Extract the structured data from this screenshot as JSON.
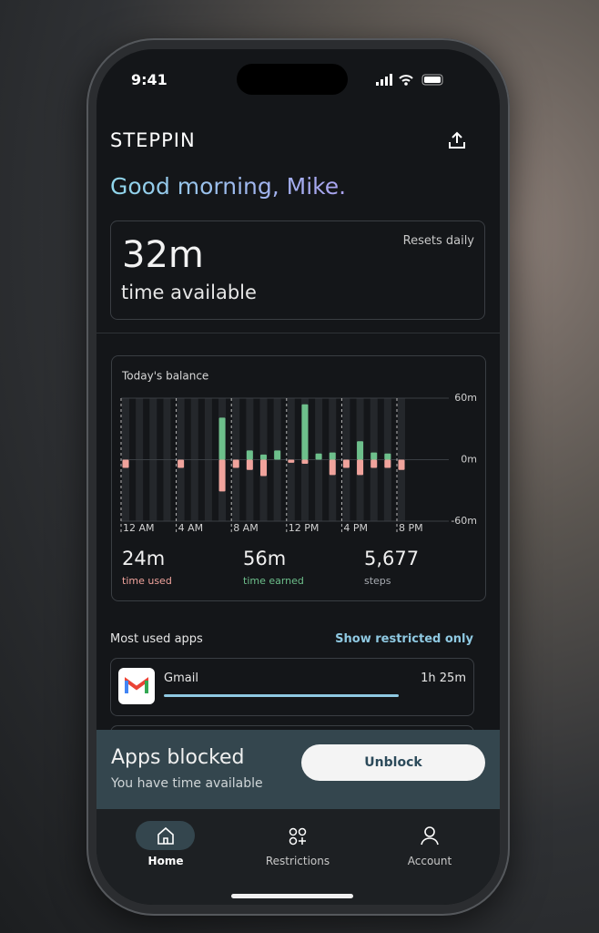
{
  "status_bar": {
    "time": "9:41"
  },
  "header": {
    "logo": "STEPPIN"
  },
  "greeting": "Good morning, Mike.",
  "available_card": {
    "amount": "32m",
    "label": "time available",
    "note": "Resets daily"
  },
  "balance_card": {
    "stats": [
      {
        "value": "24m",
        "label": "time used",
        "color": "#f0a39c"
      },
      {
        "value": "56m",
        "label": "time earned",
        "color": "#6dbf8b"
      },
      {
        "value": "5,677",
        "label": "steps",
        "color": "#a8acb2"
      }
    ]
  },
  "chart_data": {
    "type": "bar",
    "title": "Today's balance",
    "categories": [
      "12 AM",
      null,
      null,
      null,
      "4 AM",
      null,
      null,
      null,
      "8 AM",
      null,
      null,
      null,
      "12 PM",
      null,
      null,
      null,
      "4 PM",
      null,
      null,
      null,
      "8 PM",
      null,
      null,
      null
    ],
    "series": [
      {
        "color": "#6dbf8b",
        "values": [
          null,
          null,
          null,
          null,
          null,
          null,
          null,
          41,
          null,
          9,
          5,
          9,
          null,
          54,
          6,
          7,
          null,
          18,
          7,
          6,
          null,
          null,
          null,
          null
        ]
      },
      {
        "color": "#f0a39c",
        "values": [
          -8,
          null,
          null,
          null,
          -8,
          null,
          null,
          -31,
          -8,
          -10,
          -16,
          null,
          -3,
          -4,
          null,
          -15,
          -8,
          -15,
          -8,
          -8,
          -10,
          null,
          null,
          null
        ]
      }
    ],
    "ylim": [
      -60,
      60
    ],
    "yticks": [
      {
        "value": 60,
        "label": "60m"
      },
      {
        "value": 0,
        "label": "0m"
      },
      {
        "value": -60,
        "label": "-60m"
      }
    ],
    "grid": true
  },
  "apps": {
    "title": "Most used apps",
    "filter": "Show restricted only",
    "items": [
      {
        "name": "Gmail",
        "duration": "1h 25m"
      }
    ]
  },
  "banner": {
    "title": "Apps blocked",
    "subtitle": "You have time available",
    "button": "Unblock"
  },
  "tabs": [
    {
      "label": "Home"
    },
    {
      "label": "Restrictions"
    },
    {
      "label": "Account"
    }
  ]
}
